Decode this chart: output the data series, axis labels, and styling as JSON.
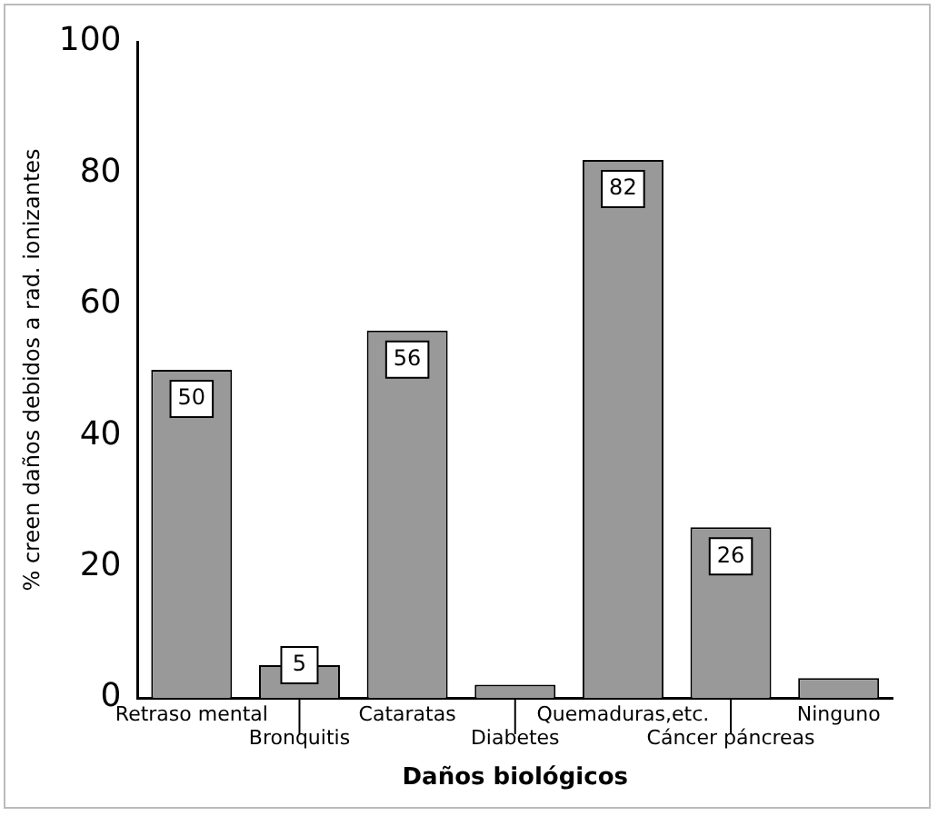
{
  "chart_data": {
    "type": "bar",
    "xlabel": "Daños biológicos",
    "ylabel": "% creen daños debidos a rad. ionizantes",
    "categories": [
      "Retraso mental",
      "Bronquitis",
      "Cataratas",
      "Diabetes",
      "Quemaduras,etc.",
      "Cáncer páncreas",
      "Ninguno"
    ],
    "values": [
      50,
      5,
      56,
      2,
      82,
      26,
      3
    ],
    "value_labels": [
      "50",
      "5",
      "56",
      null,
      "82",
      "26",
      null
    ],
    "color": "#999999",
    "ylim": [
      0,
      100
    ],
    "yticks": [
      0,
      20,
      40,
      60,
      80,
      100
    ],
    "grid": false,
    "legend": false
  }
}
